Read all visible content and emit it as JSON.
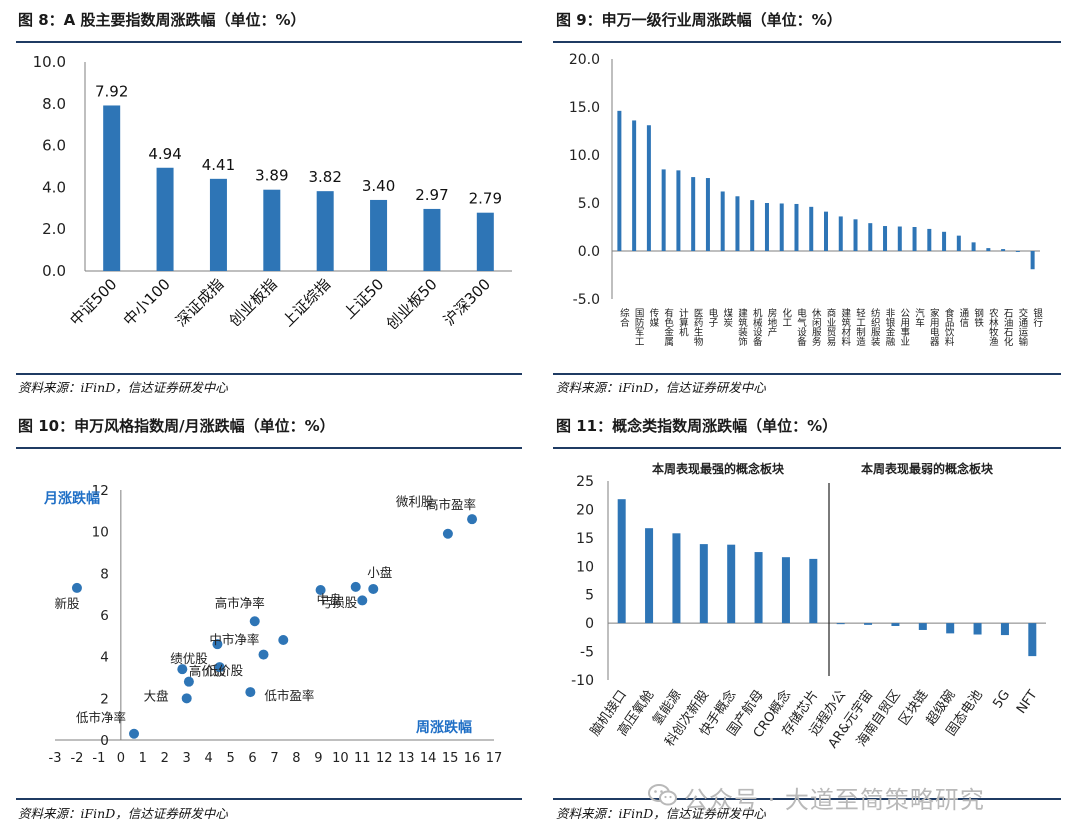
{
  "charts": [
    {
      "title": "图 8：A 股主要指数周涨跌幅（单位：%）",
      "source": "资料来源：iFinD，信达证券研发中心"
    },
    {
      "title": "图 9：申万一级行业周涨跌幅（单位：%）",
      "source": "资料来源：iFinD，信达证券研发中心"
    },
    {
      "title": "图 10：申万风格指数周/月涨跌幅（单位：%）",
      "source": "资料来源：iFinD，信达证券研发中心"
    },
    {
      "title": "图 11：概念类指数周涨跌幅（单位：%）",
      "source": "资料来源：iFinD，信达证券研发中心"
    }
  ],
  "watermark": "公众号 · 大道至简策略研究",
  "colors": {
    "bar": "#2e75b6",
    "axis": "#7f7f7f",
    "label_blue": "#1f6fc6",
    "rule": "#1f3b63"
  },
  "chart_data": [
    {
      "type": "bar",
      "title": "图 8：A 股主要指数周涨跌幅（单位：%）",
      "categories": [
        "中证500",
        "中小100",
        "深证成指",
        "创业板指",
        "上证综指",
        "上证50",
        "创业板50",
        "沪深300"
      ],
      "values": [
        7.92,
        4.94,
        4.41,
        3.89,
        3.82,
        3.4,
        2.97,
        2.79
      ],
      "value_labels": [
        "7.92",
        "4.94",
        "4.41",
        "3.89",
        "3.82",
        "3.40",
        "2.97",
        "2.79"
      ],
      "ylim": [
        0,
        10
      ],
      "yticks": [
        "0.0",
        "2.0",
        "4.0",
        "6.0",
        "8.0",
        "10.0"
      ]
    },
    {
      "type": "bar",
      "title": "图 9：申万一级行业周涨跌幅（单位：%）",
      "categories": [
        "综合",
        "国防军工",
        "传媒",
        "有色金属",
        "计算机",
        "医药生物",
        "电子",
        "煤炭",
        "建筑装饰",
        "机械设备",
        "房地产",
        "化工",
        "电气设备",
        "休闲服务",
        "商业贸易",
        "建筑材料",
        "轻工制造",
        "纺织服装",
        "非银金融",
        "公用事业",
        "汽车",
        "家用电器",
        "食品饮料",
        "通信",
        "钢铁",
        "农林牧渔",
        "石油石化",
        "交通运输",
        "银行"
      ],
      "values": [
        14.6,
        13.6,
        13.1,
        8.5,
        8.4,
        7.7,
        7.6,
        6.2,
        5.7,
        5.3,
        5.0,
        4.95,
        4.9,
        4.6,
        4.1,
        3.6,
        3.3,
        2.9,
        2.6,
        2.55,
        2.5,
        2.3,
        2.0,
        1.6,
        0.9,
        0.3,
        0.2,
        -0.1,
        -1.9
      ],
      "ylim": [
        -5,
        20
      ],
      "yticks": [
        "-5.0",
        "0.0",
        "5.0",
        "10.0",
        "15.0",
        "20.0"
      ]
    },
    {
      "type": "scatter",
      "title": "图 10：申万风格指数周/月涨跌幅（单位：%）",
      "xlabel": "周涨跌幅",
      "ylabel": "月涨跌幅",
      "xlim": [
        -3,
        17
      ],
      "ylim": [
        0,
        12
      ],
      "xticks": [
        "-3",
        "-2",
        "-1",
        "0",
        "1",
        "2",
        "3",
        "4",
        "5",
        "6",
        "7",
        "8",
        "9",
        "10",
        "11",
        "12",
        "13",
        "14",
        "15",
        "16",
        "17"
      ],
      "yticks": [
        "0",
        "2",
        "4",
        "6",
        "8",
        "10",
        "12"
      ],
      "points": [
        {
          "label": "新股",
          "x": -2.0,
          "y": 7.3
        },
        {
          "label": "低市净率",
          "x": 0.6,
          "y": 0.3
        },
        {
          "label": "大盘",
          "x": 3.0,
          "y": 2.0
        },
        {
          "label": "绩优股",
          "x": 2.8,
          "y": 3.4
        },
        {
          "label": "高价股",
          "x": 3.1,
          "y": 2.8
        },
        {
          "label": "低价股",
          "x": 4.5,
          "y": 3.5
        },
        {
          "label": "低市盈率",
          "x": 5.9,
          "y": 2.3
        },
        {
          "label": "高市净率",
          "x": 6.1,
          "y": 5.7
        },
        {
          "label": "中市净率",
          "x": 4.4,
          "y": 4.6
        },
        {
          "label": "",
          "x": 6.5,
          "y": 4.1
        },
        {
          "label": "",
          "x": 7.4,
          "y": 4.8
        },
        {
          "label": "中盘",
          "x": 9.1,
          "y": 7.2
        },
        {
          "label": "亏损股",
          "x": 10.7,
          "y": 7.35
        },
        {
          "label": "",
          "x": 11.0,
          "y": 6.7
        },
        {
          "label": "小盘",
          "x": 11.5,
          "y": 7.25
        },
        {
          "label": "微利股",
          "x": 14.9,
          "y": 9.9
        },
        {
          "label": "高市盈率",
          "x": 16.0,
          "y": 10.6
        }
      ]
    },
    {
      "type": "bar",
      "title": "图 11：概念类指数周涨跌幅（单位：%）",
      "groups": [
        "本周表现最强的概念板块",
        "本周表现最弱的概念板块"
      ],
      "categories": [
        "脑机接口",
        "高压氧舱",
        "氢能源",
        "科创次新股",
        "快手概念",
        "国产航母",
        "CRO概念",
        "存储芯片",
        "远程办公",
        "AR&元宇宙",
        "海南自贸区",
        "区块链",
        "超级碗",
        "固态电池",
        "5G",
        "NFT"
      ],
      "values": [
        21.8,
        16.7,
        15.8,
        13.9,
        13.8,
        12.5,
        11.6,
        11.3,
        -0.1,
        -0.3,
        -0.5,
        -1.2,
        -1.8,
        -2.0,
        -2.1,
        -5.8
      ],
      "ylim": [
        -10,
        25
      ],
      "yticks": [
        "-10",
        "-5",
        "0",
        "5",
        "10",
        "15",
        "20",
        "25"
      ]
    }
  ]
}
